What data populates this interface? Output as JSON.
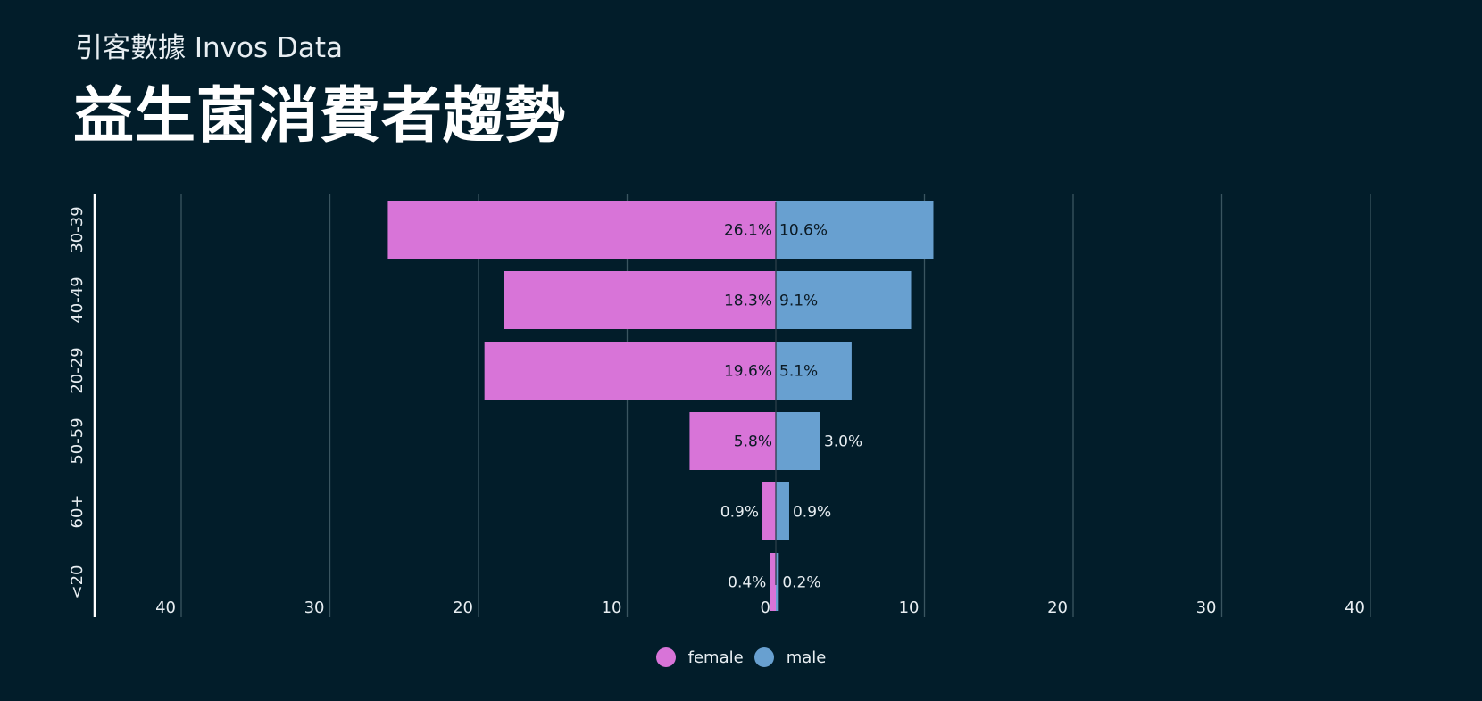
{
  "header": {
    "subtitle": "引客數據 Invos Data",
    "title": "益生菌消費者趨勢"
  },
  "colors": {
    "background": "#021d2a",
    "female": "#d874d8",
    "male": "#68a0d0",
    "grid": "#3a5560",
    "axis": "#ffffff",
    "tick_text": "#e8eef2",
    "label_inside": "#0b1a24",
    "label_outside": "#e8eef2"
  },
  "chart_data": {
    "type": "bar",
    "orientation": "horizontal-diverging",
    "categories": [
      "30-39",
      "40-49",
      "20-29",
      "50-59",
      "60+",
      "<20"
    ],
    "series": [
      {
        "name": "female",
        "values": [
          26.1,
          18.3,
          19.6,
          5.8,
          0.9,
          0.4
        ],
        "labels": [
          "26.1%",
          "18.3%",
          "19.6%",
          "5.8%",
          "0.9%",
          "0.4%"
        ]
      },
      {
        "name": "male",
        "values": [
          10.6,
          9.1,
          5.1,
          3.0,
          0.9,
          0.2
        ],
        "labels": [
          "10.6%",
          "9.1%",
          "5.1%",
          "3.0%",
          "0.9%",
          "0.2%"
        ]
      }
    ],
    "xlim": [
      -46,
      46
    ],
    "xticks": [
      -40,
      -30,
      -20,
      -10,
      0,
      10,
      20,
      30,
      40
    ],
    "xtick_labels": [
      "40",
      "30",
      "20",
      "10",
      "0",
      "10",
      "20",
      "30",
      "40"
    ],
    "grid": true,
    "legend": {
      "position": "bottom-center",
      "entries": [
        "female",
        "male"
      ]
    }
  }
}
